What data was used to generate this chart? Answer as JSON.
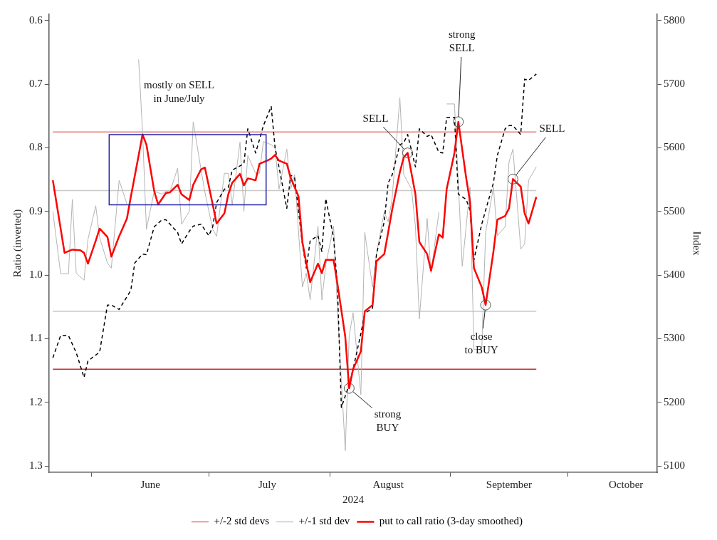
{
  "chart_data": {
    "type": "line",
    "xlabel": "2024",
    "ylabel": "Ratio (inverted)",
    "y2label": "Index",
    "xlim": [
      "2024-05-21",
      "2024-10-24"
    ],
    "xticks": [
      {
        "value": "2024-06-01",
        "label": null
      },
      {
        "value": "2024-06-16",
        "label": "June"
      },
      {
        "value": "2024-07-01",
        "label": null
      },
      {
        "value": "2024-07-16",
        "label": "July"
      },
      {
        "value": "2024-08-01",
        "label": null
      },
      {
        "value": "2024-08-16",
        "label": "August"
      },
      {
        "value": "2024-09-01",
        "label": null
      },
      {
        "value": "2024-09-16",
        "label": "September"
      },
      {
        "value": "2024-10-01",
        "label": null
      },
      {
        "value": "2024-10-16",
        "label": "October"
      }
    ],
    "ylim": [
      1.31,
      0.59
    ],
    "yticks": [
      0.6,
      0.7,
      0.8,
      0.9,
      {
        "value": 1,
        "label": "1.0"
      },
      1.1,
      1.2,
      1.3
    ],
    "y2lim": [
      5090,
      5810
    ],
    "y2ticks": [
      5100,
      5200,
      5300,
      5400,
      5500,
      5600,
      5700,
      5800
    ],
    "grid": false,
    "legend": "bottom",
    "marker": "none",
    "series": [
      {
        "color": "#b4b4b4",
        "x": [
          "2024-05-22",
          "2024-05-24",
          "2024-05-26",
          "2024-05-27",
          "2024-05-28",
          "2024-05-30",
          "2024-05-31",
          "2024-06-02",
          "2024-06-03",
          "2024-06-05",
          "2024-06-06",
          "2024-06-08",
          "2024-06-10",
          "2024-06-11",
          "2024-06-13",
          "2024-06-14",
          "2024-06-15",
          "2024-06-17",
          "2024-06-19",
          "2024-06-20",
          "2024-06-21",
          "2024-06-23",
          "2024-06-24",
          "2024-06-26",
          "2024-06-27",
          "2024-06-29",
          "2024-06-30",
          "2024-07-02",
          "2024-07-03",
          "2024-07-05",
          "2024-07-06",
          "2024-07-07",
          "2024-07-09",
          "2024-07-10",
          "2024-07-11",
          "2024-07-13",
          "2024-07-14",
          "2024-07-15",
          "2024-07-17",
          "2024-07-18",
          "2024-07-19",
          "2024-07-21",
          "2024-07-22",
          "2024-07-23",
          "2024-07-25",
          "2024-07-26",
          "2024-07-27",
          "2024-07-29",
          "2024-07-30",
          "2024-07-31",
          "2024-08-02",
          "2024-08-03",
          "2024-08-05",
          "2024-08-06",
          "2024-08-07",
          "2024-08-09",
          "2024-08-10",
          "2024-08-12",
          "2024-08-13",
          "2024-08-15",
          "2024-08-16",
          "2024-08-17",
          "2024-08-19",
          "2024-08-20",
          "2024-08-22",
          "2024-08-23",
          "2024-08-24",
          "2024-08-26",
          "2024-08-27",
          "2024-08-29",
          "2024-08-30",
          "2024-08-31",
          "2024-09-02",
          "2024-09-03",
          "2024-09-04",
          "2024-09-06",
          "2024-09-07",
          "2024-09-09",
          "2024-09-10",
          "2024-09-12",
          "2024-09-13",
          "2024-09-15",
          "2024-09-16",
          "2024-09-17",
          "2024-09-19",
          "2024-09-20",
          "2024-09-21",
          "2024-09-23"
        ],
        "values": [
          0.9,
          0.998,
          0.998,
          0.881,
          0.997,
          1.008,
          0.944,
          0.891,
          0.941,
          0.981,
          0.989,
          0.851,
          0.888,
          null,
          0.661,
          0.774,
          0.928,
          0.868,
          0.873,
          0.868,
          0.87,
          0.832,
          0.92,
          0.9,
          0.759,
          0.834,
          0.87,
          0.928,
          0.939,
          0.84,
          0.84,
          0.889,
          0.791,
          0.9,
          0.812,
          0.84,
          0.84,
          0.79,
          0.795,
          0.801,
          0.865,
          0.802,
          0.865,
          0.842,
          1.019,
          0.997,
          1.039,
          0.923,
          1.039,
          0.984,
          0.923,
          1.054,
          1.276,
          1.096,
          1.059,
          1.188,
          0.933,
          1.019,
          0.967,
          0.901,
          0.916,
          0.881,
          0.721,
          0.842,
          0.865,
          0.924,
          1.069,
          0.911,
          0.997,
          0.901,
          null,
          0.731,
          0.731,
          0.855,
          0.986,
          0.862,
          1.117,
          1.117,
          0.933,
          0.862,
          0.938,
          0.924,
          0.822,
          0.802,
          0.959,
          0.951,
          0.851,
          0.83
        ]
      },
      {
        "color": "#000000",
        "axis": "y2",
        "line_style": "dashed",
        "x": [
          "2024-05-22",
          "2024-05-24",
          "2024-05-26",
          "2024-05-28",
          "2024-05-30",
          "2024-05-31",
          "2024-06-03",
          "2024-06-05",
          "2024-06-06",
          "2024-06-08",
          "2024-06-11",
          "2024-06-12",
          "2024-06-14",
          "2024-06-15",
          "2024-06-17",
          "2024-06-19",
          "2024-06-20",
          "2024-06-23",
          "2024-06-24",
          "2024-06-26",
          "2024-06-27",
          "2024-06-29",
          "2024-07-01",
          "2024-07-02",
          "2024-07-03",
          "2024-07-05",
          "2024-07-06",
          "2024-07-07",
          "2024-07-10",
          "2024-07-11",
          "2024-07-13",
          "2024-07-14",
          "2024-07-15",
          "2024-07-17",
          "2024-07-18",
          "2024-07-19",
          "2024-07-21",
          "2024-07-22",
          "2024-07-23",
          "2024-07-25",
          "2024-07-26",
          "2024-07-27",
          "2024-07-29",
          "2024-07-30",
          "2024-07-31",
          "2024-08-02",
          "2024-08-03",
          "2024-08-04",
          "2024-08-06",
          "2024-08-07",
          "2024-08-09",
          "2024-08-10",
          "2024-08-12",
          "2024-08-13",
          "2024-08-15",
          "2024-08-16",
          "2024-08-17",
          "2024-08-19",
          "2024-08-20",
          "2024-08-21",
          "2024-08-23",
          "2024-08-24",
          "2024-08-26",
          "2024-08-27",
          "2024-08-29",
          "2024-08-30",
          "2024-08-31",
          "2024-09-02",
          "2024-09-03",
          "2024-09-05",
          "2024-09-06",
          "2024-09-07",
          "2024-09-09",
          "2024-09-10",
          "2024-09-12",
          "2024-09-13",
          "2024-09-15",
          "2024-09-16",
          "2024-09-17",
          "2024-09-19",
          "2024-09-20",
          "2024-09-21",
          "2024-09-23"
        ],
        "values": [
          5270,
          5305,
          5305,
          5278,
          5239,
          5265,
          5279,
          5353,
          5353,
          5346,
          5376,
          5419,
          5433,
          5432,
          5476,
          5487,
          5487,
          5467,
          5449,
          5469,
          5477,
          5480,
          5462,
          5476,
          5514,
          5535,
          5538,
          5565,
          5575,
          5630,
          5592,
          5613,
          5635,
          5665,
          5600,
          5570,
          5505,
          5557,
          5553,
          5449,
          5411,
          5454,
          5462,
          5437,
          5520,
          5459,
          5381,
          5192,
          5228,
          5252,
          5308,
          5340,
          5348,
          5433,
          5484,
          5545,
          5557,
          5605,
          5608,
          5621,
          5570,
          5630,
          5618,
          5621,
          5593,
          5592,
          5648,
          5648,
          5527,
          5519,
          5502,
          5424,
          5480,
          5502,
          5545,
          5588,
          5630,
          5635,
          5635,
          5621,
          5708,
          5706,
          5716
        ]
      },
      {
        "name": "put to call ratio (3-day smoothed)",
        "color": "#ff0000",
        "x": [
          "2024-05-22",
          "2024-05-25",
          "2024-05-27",
          "2024-05-29",
          "2024-05-30",
          "2024-05-31",
          "2024-06-02",
          "2024-06-03",
          "2024-06-05",
          "2024-06-06",
          "2024-06-08",
          "2024-06-10",
          "2024-06-11",
          "2024-06-13",
          "2024-06-14",
          "2024-06-15",
          "2024-06-17",
          "2024-06-18",
          "2024-06-20",
          "2024-06-21",
          "2024-06-23",
          "2024-06-24",
          "2024-06-26",
          "2024-06-27",
          "2024-06-29",
          "2024-06-30",
          "2024-07-02",
          "2024-07-03",
          "2024-07-05",
          "2024-07-06",
          "2024-07-07",
          "2024-07-09",
          "2024-07-10",
          "2024-07-11",
          "2024-07-13",
          "2024-07-14",
          "2024-07-16",
          "2024-07-17",
          "2024-07-18",
          "2024-07-19",
          "2024-07-21",
          "2024-07-22",
          "2024-07-24",
          "2024-07-25",
          "2024-07-26",
          "2024-07-27",
          "2024-07-29",
          "2024-07-30",
          "2024-07-31",
          "2024-08-02",
          "2024-08-03",
          "2024-08-05",
          "2024-08-06",
          "2024-08-07",
          "2024-08-09",
          "2024-08-10",
          "2024-08-12",
          "2024-08-13",
          "2024-08-15",
          "2024-08-16",
          "2024-08-17",
          "2024-08-19",
          "2024-08-20",
          "2024-08-21",
          "2024-08-23",
          "2024-08-24",
          "2024-08-26",
          "2024-08-27",
          "2024-08-29",
          "2024-08-30",
          "2024-08-31",
          "2024-09-02",
          "2024-09-03",
          "2024-09-05",
          "2024-09-06",
          "2024-09-07",
          "2024-09-09",
          "2024-09-10",
          "2024-09-12",
          "2024-09-13",
          "2024-09-15",
          "2024-09-16",
          "2024-09-17",
          "2024-09-19",
          "2024-09-20",
          "2024-09-21",
          "2024-09-23"
        ],
        "values": [
          0.851,
          0.965,
          0.96,
          0.961,
          0.965,
          0.982,
          0.946,
          0.927,
          0.94,
          0.971,
          0.939,
          0.911,
          0.877,
          0.812,
          0.779,
          0.795,
          0.868,
          0.889,
          0.871,
          0.87,
          0.858,
          0.873,
          0.882,
          0.858,
          0.834,
          0.831,
          0.889,
          0.919,
          0.903,
          0.873,
          0.855,
          0.841,
          0.859,
          0.848,
          0.851,
          0.825,
          0.82,
          0.817,
          0.811,
          0.82,
          0.825,
          0.847,
          0.876,
          0.948,
          0.981,
          1.011,
          0.982,
          0.997,
          0.976,
          0.976,
          1.014,
          1.097,
          1.178,
          1.148,
          1.12,
          1.057,
          1.047,
          0.978,
          0.967,
          0.933,
          0.898,
          0.838,
          0.815,
          0.808,
          0.873,
          0.948,
          0.967,
          0.993,
          0.936,
          0.941,
          0.865,
          0.808,
          0.759,
          0.847,
          0.885,
          0.989,
          1.019,
          1.047,
          0.963,
          0.913,
          0.907,
          0.895,
          0.849,
          0.861,
          0.903,
          0.919,
          0.877
        ]
      }
    ],
    "ref_lines": [
      {
        "axis": "y",
        "value": 0.775,
        "label": "+/-2 std devs",
        "color": "#e57b7b"
      },
      {
        "axis": "y",
        "value": 1.148,
        "color": "#cc2a2a"
      },
      {
        "axis": "y",
        "value": 0.867,
        "label": "+/-1 std dev",
        "color": "#c8c8c8"
      },
      {
        "axis": "y",
        "value": 1.057,
        "color": "#c8c8c8"
      }
    ],
    "annotations": [
      "mostly on SELL\nin June/July",
      {
        "text": "SELL",
        "x": "2024-08-21",
        "y": 0.808
      },
      {
        "text": "strong\nSELL",
        "x": "2024-09-03",
        "y": 0.759
      },
      {
        "text": "SELL",
        "x": "2024-09-17",
        "y": 0.849
      },
      {
        "text": "strong\nBUY",
        "x": "2024-08-06",
        "y": 1.178
      },
      {
        "text": "close\nto BUY",
        "x": "2024-09-10",
        "y": 1.047
      }
    ]
  }
}
